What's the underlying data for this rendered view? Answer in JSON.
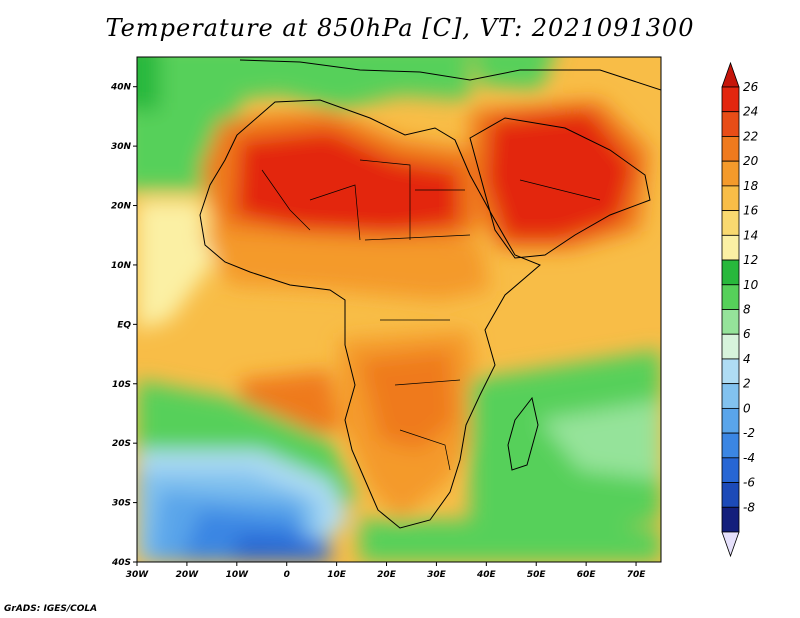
{
  "title": "Temperature at 850hPa [C], VT: 2021091300",
  "credit": "GrADS: IGES/COLA",
  "map": {
    "lon_range": [
      -30,
      75
    ],
    "lat_range": [
      -40,
      45
    ],
    "lon_ticks": [
      "30W",
      "20W",
      "10W",
      "0",
      "10E",
      "20E",
      "30E",
      "40E",
      "50E",
      "60E",
      "70E"
    ],
    "lat_ticks": [
      "40N",
      "30N",
      "20N",
      "10N",
      "EQ",
      "10S",
      "20S",
      "30S",
      "40S"
    ]
  },
  "colorbar": {
    "labels": [
      "26",
      "24",
      "22",
      "20",
      "18",
      "16",
      "14",
      "12",
      "10",
      "8",
      "6",
      "4",
      "2",
      "0",
      "-2",
      "-4",
      "-6",
      "-8"
    ],
    "colors": [
      "#e3260f",
      "#e84d17",
      "#ef7a1e",
      "#f49a2b",
      "#f8bd47",
      "#f9d970",
      "#fbf0a4",
      "#28b83c",
      "#56d05a",
      "#95e39a",
      "#d7f3dc",
      "#afdcf3",
      "#82c2ef",
      "#5aa5ea",
      "#3b86e3",
      "#2766d4",
      "#1c4ab8",
      "#141f7c"
    ]
  }
}
